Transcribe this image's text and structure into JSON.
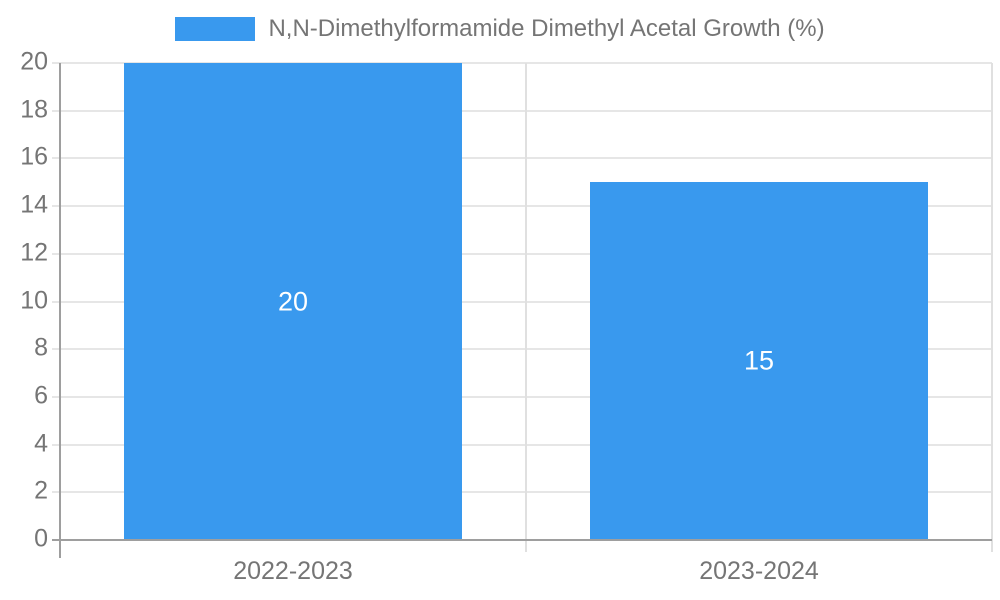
{
  "legend": {
    "label": "N,N-Dimethylformamide Dimethyl Acetal Growth (%)"
  },
  "chart_data": {
    "type": "bar",
    "title": "N,N-Dimethylformamide Dimethyl Acetal Growth (%)",
    "categories": [
      "2022-2023",
      "2023-2024"
    ],
    "values": [
      20,
      15
    ],
    "bar_labels": [
      "20",
      "15"
    ],
    "xlabel": "",
    "ylabel": "",
    "ylim": [
      0,
      20
    ],
    "yticks": [
      0,
      2,
      4,
      6,
      8,
      10,
      12,
      14,
      16,
      18,
      20
    ],
    "grid": true,
    "show_bar_labels": true,
    "legend_position": "top-center",
    "colors": {
      "bar": "#3999ee",
      "grid": "#e6e6e6",
      "axis": "#9e9e9e",
      "separator": "#e0e0e0",
      "text": "#757575",
      "bar_label": "#ffffff",
      "background": "#ffffff"
    }
  }
}
